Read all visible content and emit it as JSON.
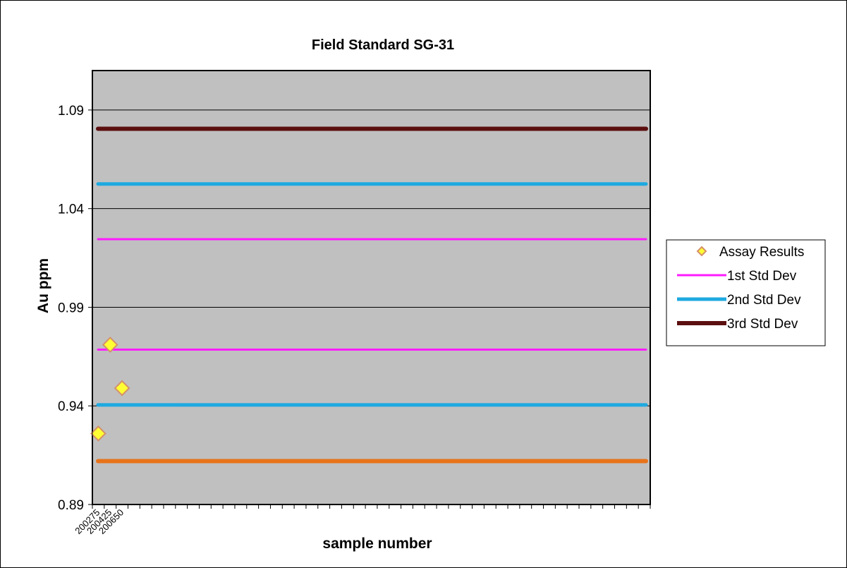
{
  "chart_data": {
    "type": "scatter",
    "title": "Field Standard SG-31",
    "xlabel": "sample number",
    "ylabel": "Au ppm",
    "ylim": [
      0.89,
      1.11
    ],
    "yticks": [
      0.89,
      0.94,
      0.99,
      1.04,
      1.09
    ],
    "x_categories": [
      "200275",
      "200425",
      "200650"
    ],
    "x_slots": 47,
    "grid": true,
    "legend_position": "right",
    "background_color": "#c0c0c0",
    "assay_results": {
      "name": "Assay Results",
      "marker": "diamond",
      "fill": "#ffff33",
      "edge": "#d4906a",
      "values": [
        {
          "x": "200275",
          "y": 0.926
        },
        {
          "x": "200425",
          "y": 0.971
        },
        {
          "x": "200650",
          "y": 0.949
        }
      ]
    },
    "reference_lines": [
      {
        "name": "3rd Std Dev",
        "color": "#5c0f0f",
        "y": 1.0805,
        "width": 6,
        "in_legend": true
      },
      {
        "name": "2nd Std Dev",
        "color": "#1ea9e0",
        "y": 1.0525,
        "width": 5,
        "in_legend": true
      },
      {
        "name": "1st Std Dev",
        "color": "#ff1cff",
        "y": 1.0245,
        "width": 3,
        "in_legend": true
      },
      {
        "name": "1st Std Dev",
        "color": "#ff1cff",
        "y": 0.9685,
        "width": 3,
        "in_legend": false
      },
      {
        "name": "2nd Std Dev",
        "color": "#1ea9e0",
        "y": 0.9405,
        "width": 5,
        "in_legend": false
      },
      {
        "name": "",
        "color": "#e8731a",
        "y": 0.912,
        "width": 6,
        "in_legend": false
      }
    ]
  }
}
